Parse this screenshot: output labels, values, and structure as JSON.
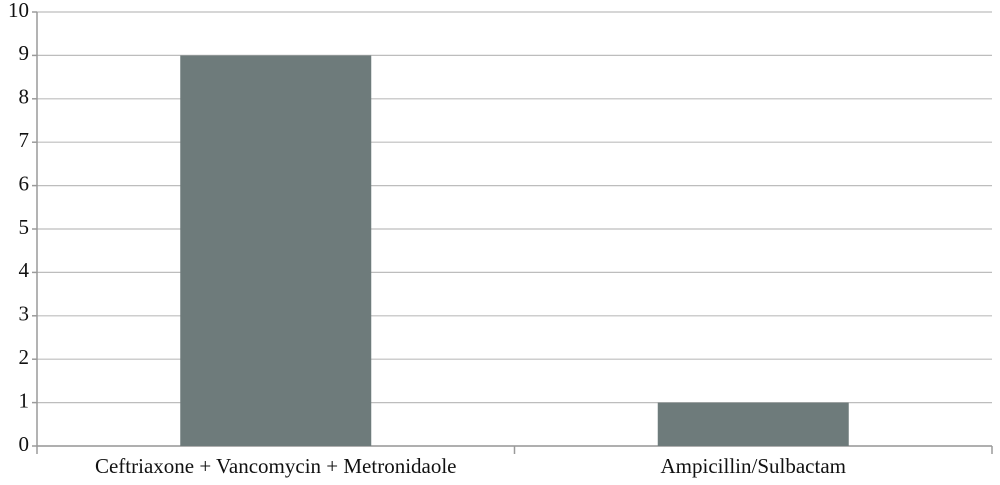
{
  "chart_data": {
    "type": "bar",
    "categories": [
      "Ceftriaxone + Vancomycin + Metronidaole",
      "Ampicillin/Sulbactam"
    ],
    "values": [
      9,
      1
    ],
    "color": "#6e7b7b",
    "ylim": [
      0,
      10
    ],
    "yticks": [
      0,
      1,
      2,
      3,
      4,
      5,
      6,
      7,
      8,
      9,
      10
    ],
    "grid": true
  }
}
